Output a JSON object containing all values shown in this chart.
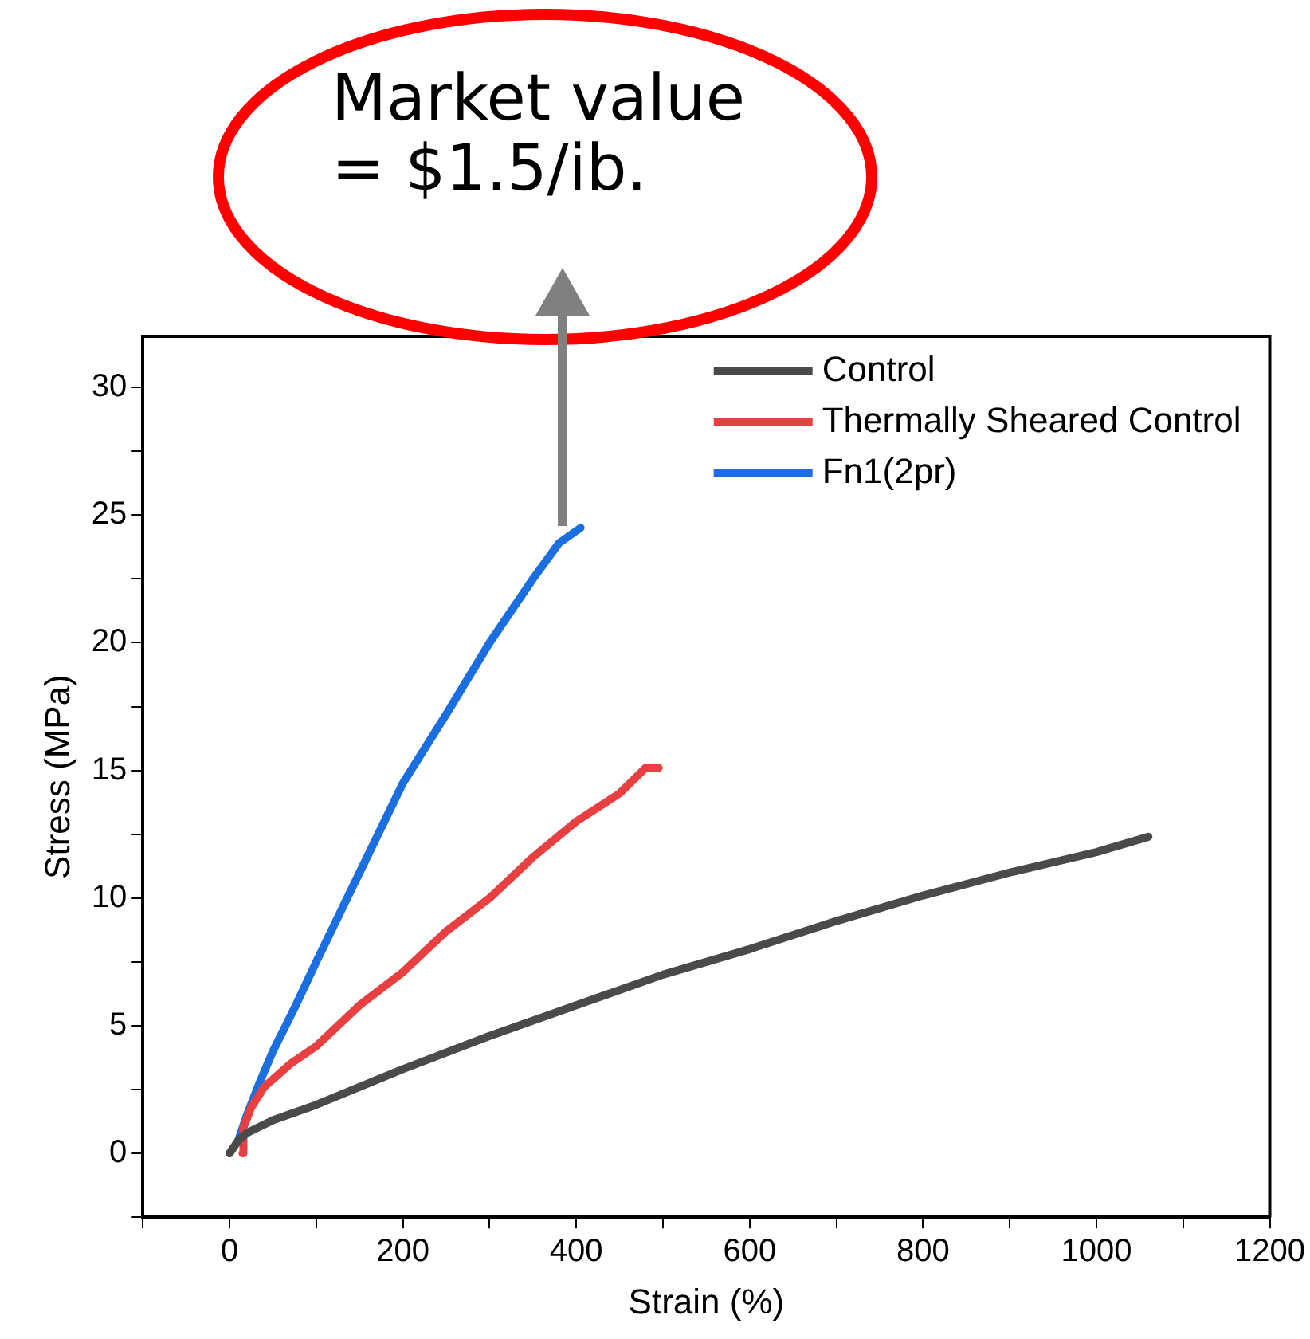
{
  "chart_data": {
    "type": "line",
    "xlabel": "Strain (%)",
    "ylabel": "Stress (MPa)",
    "annotations": [
      "Market value\n= $1.5/ib."
    ],
    "xlim": [
      -100,
      1200
    ],
    "ylim": [
      -2.5,
      32
    ],
    "xticks": [
      {
        "value": -100,
        "label": null
      },
      0,
      {
        "value": 100,
        "label": null
      },
      200,
      {
        "value": 300,
        "label": null
      },
      400,
      {
        "value": 500,
        "label": null
      },
      600,
      {
        "value": 700,
        "label": null
      },
      800,
      {
        "value": 900,
        "label": null
      },
      1000,
      {
        "value": 1100,
        "label": null
      },
      1200
    ],
    "yticks": [
      {
        "value": -2.5,
        "label": null
      },
      0,
      {
        "value": 2.5,
        "label": null
      },
      5,
      {
        "value": 7.5,
        "label": null
      },
      10,
      {
        "value": 12.5,
        "label": null
      },
      15,
      {
        "value": 17.5,
        "label": null
      },
      20,
      {
        "value": 22.5,
        "label": null
      },
      25,
      {
        "value": 27.5,
        "label": null
      },
      30
    ],
    "grid": false,
    "legend": "top right",
    "marker": "none",
    "line_style": "solid",
    "series": [
      {
        "name": "Control",
        "color": "#4a4a4a",
        "x": [
          0,
          10,
          20,
          50,
          100,
          200,
          300,
          400,
          500,
          600,
          700,
          800,
          900,
          1000,
          1060
        ],
        "values": [
          0,
          0.5,
          0.8,
          1.3,
          1.9,
          3.3,
          4.6,
          5.8,
          7.0,
          8.0,
          9.1,
          10.1,
          11.0,
          11.8,
          12.4
        ]
      },
      {
        "name": "Thermally Sheared Control",
        "color": "#e84040",
        "x": [
          15,
          16,
          25,
          40,
          70,
          100,
          150,
          200,
          250,
          300,
          350,
          400,
          450,
          480,
          495
        ],
        "values": [
          0,
          1.0,
          1.8,
          2.6,
          3.5,
          4.2,
          5.8,
          7.1,
          8.7,
          10.0,
          11.6,
          13.0,
          14.1,
          15.1,
          15.1
        ]
      },
      {
        "name": "Fn1(2pr)",
        "color": "#1a6ee0",
        "x": [
          10,
          20,
          35,
          50,
          75,
          100,
          150,
          200,
          250,
          300,
          350,
          380,
          405
        ],
        "values": [
          0.5,
          1.5,
          2.8,
          4.0,
          5.7,
          7.5,
          11.0,
          14.5,
          17.2,
          20.0,
          22.5,
          23.9,
          24.5
        ]
      }
    ]
  }
}
